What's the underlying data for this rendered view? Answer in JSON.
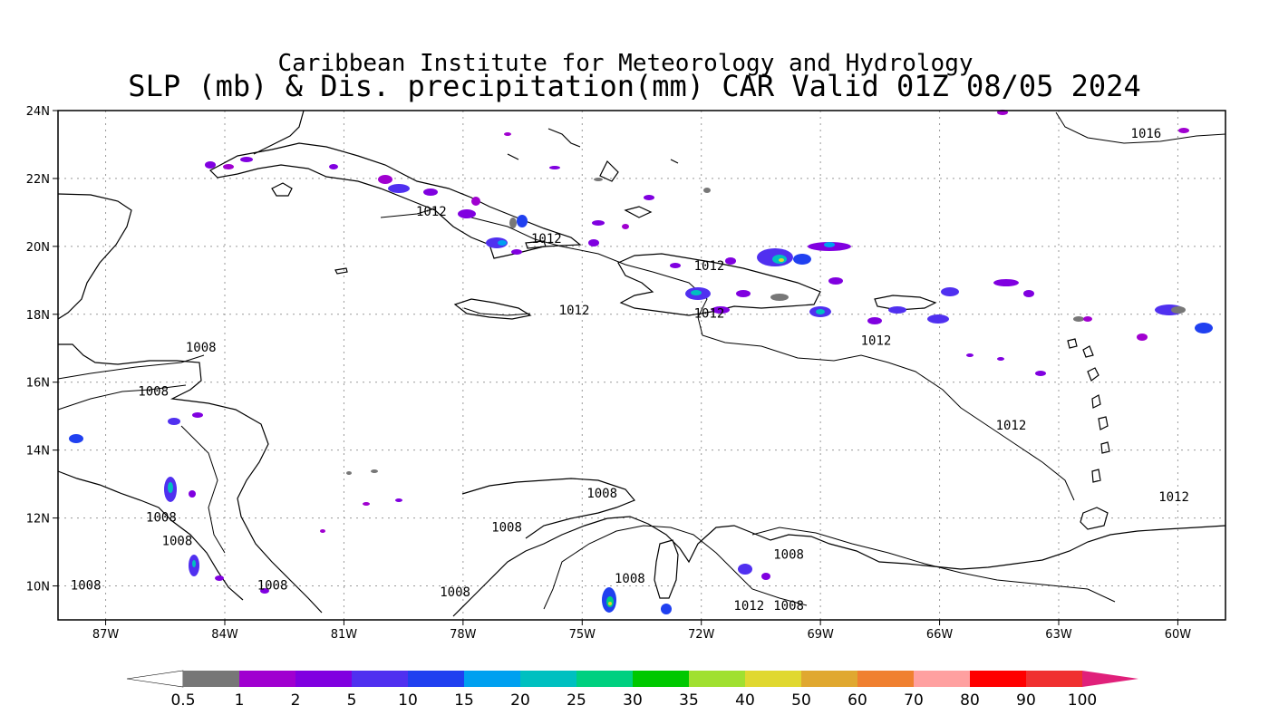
{
  "title": {
    "line1": "Caribbean Institute for Meteorology and Hydrology",
    "line2": "SLP (mb) & Dis. precipitation(mm) CAR Valid 01Z 08/05 2024"
  },
  "map": {
    "lon_range": [
      -88.2,
      -58.8
    ],
    "lat_range": [
      9.0,
      24.0
    ],
    "lat_ticks": [
      {
        "value": 24,
        "label": "24N"
      },
      {
        "value": 22,
        "label": "22N"
      },
      {
        "value": 20,
        "label": "20N"
      },
      {
        "value": 18,
        "label": "18N"
      },
      {
        "value": 16,
        "label": "16N"
      },
      {
        "value": 14,
        "label": "14N"
      },
      {
        "value": 12,
        "label": "12N"
      },
      {
        "value": 10,
        "label": "10N"
      }
    ],
    "lon_ticks": [
      {
        "value": -87,
        "label": "87W"
      },
      {
        "value": -84,
        "label": "84W"
      },
      {
        "value": -81,
        "label": "81W"
      },
      {
        "value": -78,
        "label": "78W"
      },
      {
        "value": -75,
        "label": "75W"
      },
      {
        "value": -72,
        "label": "72W"
      },
      {
        "value": -69,
        "label": "69W"
      },
      {
        "value": -66,
        "label": "66W"
      },
      {
        "value": -63,
        "label": "63W"
      },
      {
        "value": -60,
        "label": "60W"
      }
    ],
    "isobar_labels": [
      {
        "text": "1016",
        "lon": -60.8,
        "lat": 23.2
      },
      {
        "text": "1012",
        "lon": -78.8,
        "lat": 20.9
      },
      {
        "text": "1012",
        "lon": -75.9,
        "lat": 20.1
      },
      {
        "text": "1012",
        "lon": -71.8,
        "lat": 19.3
      },
      {
        "text": "1012",
        "lon": -75.2,
        "lat": 18.0
      },
      {
        "text": "1012",
        "lon": -71.8,
        "lat": 17.9
      },
      {
        "text": "1012",
        "lon": -67.6,
        "lat": 17.1
      },
      {
        "text": "1012",
        "lon": -64.2,
        "lat": 14.6
      },
      {
        "text": "1012",
        "lon": -60.1,
        "lat": 12.5
      },
      {
        "text": "1008",
        "lon": -84.6,
        "lat": 16.9
      },
      {
        "text": "1008",
        "lon": -85.8,
        "lat": 15.6
      },
      {
        "text": "1008",
        "lon": -85.6,
        "lat": 11.9
      },
      {
        "text": "1008",
        "lon": -85.2,
        "lat": 11.2
      },
      {
        "text": "1008",
        "lon": -87.5,
        "lat": 9.9
      },
      {
        "text": "1008",
        "lon": -82.8,
        "lat": 9.9
      },
      {
        "text": "1008",
        "lon": -78.2,
        "lat": 9.7
      },
      {
        "text": "1008",
        "lon": -76.9,
        "lat": 11.6
      },
      {
        "text": "1008",
        "lon": -74.5,
        "lat": 12.6
      },
      {
        "text": "1008",
        "lon": -73.8,
        "lat": 10.1
      },
      {
        "text": "1008",
        "lon": -69.8,
        "lat": 10.8
      },
      {
        "text": "1012",
        "lon": -70.8,
        "lat": 9.3
      },
      {
        "text": "1008",
        "lon": -69.8,
        "lat": 9.3
      }
    ]
  },
  "colorbar": {
    "labels": [
      "0.5",
      "1",
      "2",
      "5",
      "10",
      "15",
      "20",
      "25",
      "30",
      "35",
      "40",
      "50",
      "60",
      "70",
      "80",
      "90",
      "100"
    ],
    "colors": [
      "#ffffff",
      "#777777",
      "#a000d0",
      "#8000e0",
      "#5030f0",
      "#2040f0",
      "#00a0f0",
      "#00c0c0",
      "#00d080",
      "#00c800",
      "#a0e030",
      "#e0d830",
      "#e0a830",
      "#f08030",
      "#ffa0a0",
      "#ff0000",
      "#f03030",
      "#e0207a"
    ]
  }
}
